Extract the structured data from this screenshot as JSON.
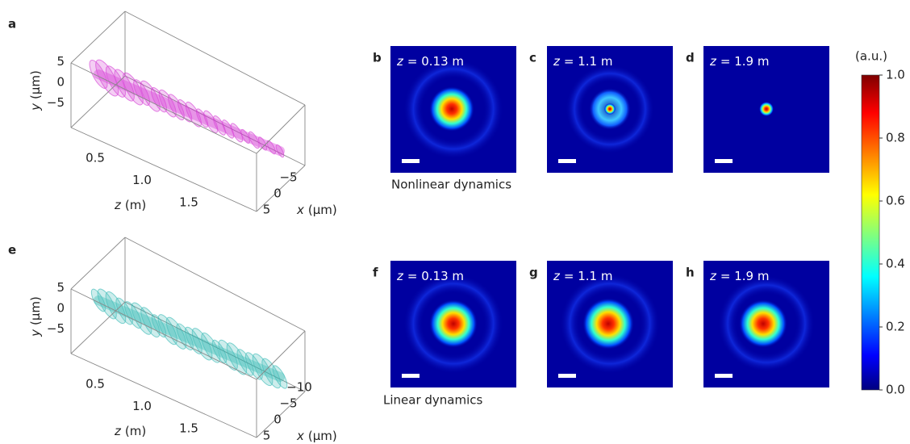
{
  "volumes": [
    {
      "letter": "a",
      "y_var": "y",
      "y_unit": "(μm)",
      "z_var": "z",
      "z_unit": "(m)",
      "x_var": "x",
      "x_unit": "(μm)",
      "yticks": [
        5,
        0,
        {
          "value": -5,
          "label": "−5"
        }
      ],
      "zticks": [
        0.5,
        {
          "value": 1,
          "label": "1.0"
        },
        1.5
      ],
      "xticks": [
        {
          "value": -5,
          "label": "−5"
        },
        0,
        5
      ],
      "color": "#d22fd2",
      "caption": "Nonlinear dynamics"
    },
    {
      "letter": "e",
      "y_var": "y",
      "y_unit": "(μm)",
      "z_var": "z",
      "z_unit": "(m)",
      "x_var": "x",
      "x_unit": "(μm)",
      "yticks": [
        5,
        0,
        {
          "value": -5,
          "label": "−5"
        }
      ],
      "zticks": [
        0.5,
        {
          "value": 1,
          "label": "1.0"
        },
        1.5
      ],
      "xticks": [
        {
          "value": -10,
          "label": "−10"
        },
        {
          "value": -5,
          "label": "−5"
        },
        0,
        5
      ],
      "color": "#2bb5b0",
      "caption": "Linear dynamics"
    }
  ],
  "maps": [
    {
      "letter": "b",
      "z_var": "z",
      "z_text": "= 0.13 m"
    },
    {
      "letter": "c",
      "z_var": "z",
      "z_text": "= 1.1 m"
    },
    {
      "letter": "d",
      "z_var": "z",
      "z_text": "= 1.9 m"
    },
    {
      "letter": "f",
      "z_var": "z",
      "z_text": "= 0.13 m"
    },
    {
      "letter": "g",
      "z_var": "z",
      "z_text": "= 1.1 m"
    },
    {
      "letter": "h",
      "z_var": "z",
      "z_text": "= 1.9 m"
    }
  ],
  "colorbar": {
    "unit": "(a.u.)",
    "ticks": [
      {
        "value": 0,
        "label": "0.0"
      },
      0.2,
      0.4,
      0.6,
      0.8,
      {
        "value": 1,
        "label": "1.0"
      }
    ]
  }
}
